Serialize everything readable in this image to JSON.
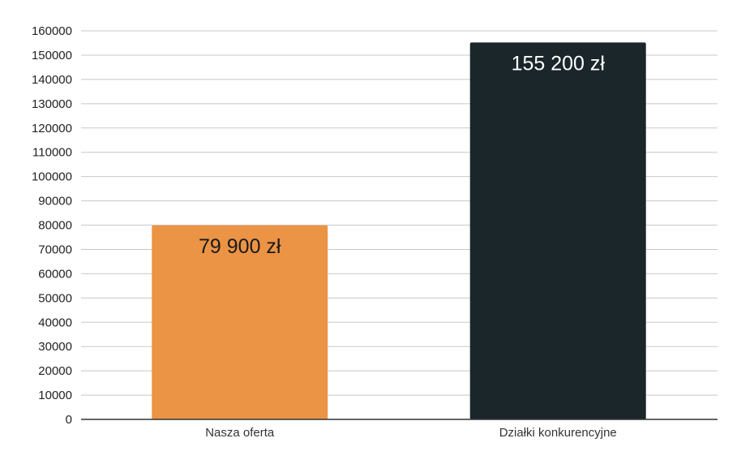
{
  "chart_data": {
    "type": "bar",
    "categories": [
      "Nasza oferta",
      "Działki konkurencyjne"
    ],
    "values": [
      79900,
      155200
    ],
    "data_labels": [
      "79 900 zł",
      "155 200 zł"
    ],
    "bar_colors": [
      "#ec9445",
      "#1b262b"
    ],
    "data_label_colors": [
      "#1a1a1a",
      "#ffffff"
    ],
    "ylim": [
      0,
      160000
    ],
    "ytick_step": 10000,
    "yticks": [
      "0",
      "10000",
      "20000",
      "30000",
      "40000",
      "50000",
      "60000",
      "70000",
      "80000",
      "90000",
      "100000",
      "110000",
      "120000",
      "130000",
      "140000",
      "150000",
      "160000"
    ],
    "grid": true,
    "legend": "none",
    "title": "",
    "xlabel": "",
    "ylabel": ""
  }
}
